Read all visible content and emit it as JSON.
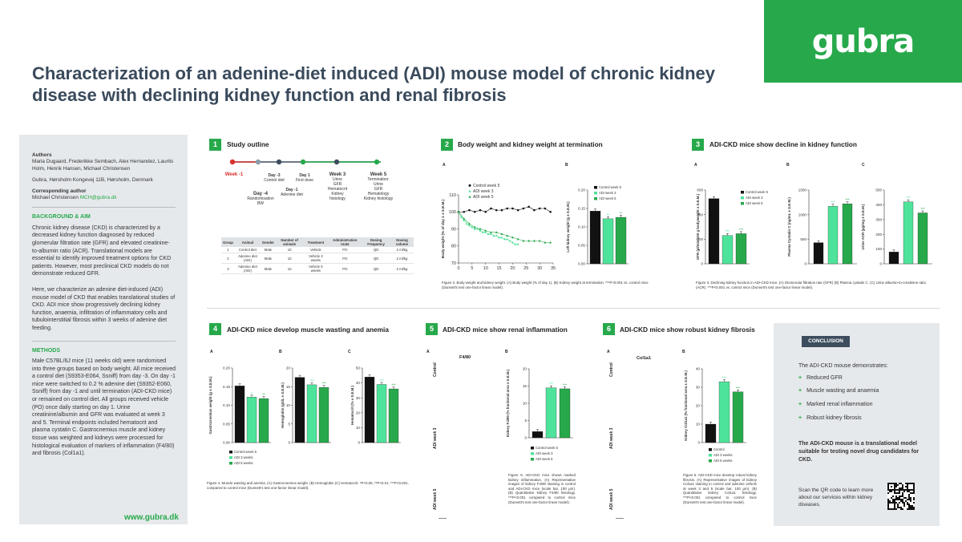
{
  "brand": {
    "logo_text": "gubra",
    "green": "#27a94b",
    "dark": "#3d4d5e",
    "website": "www.gubra.dk"
  },
  "title": "Characterization of an adenine-diet induced (ADI) mouse model of chronic kidney disease with declining kidney function and renal fibrosis",
  "sidebar": {
    "authors_label": "Authors",
    "authors": "Maria Dugaard, Frederikke Sembach, Alex Hernandez, Laurits Holm, Henrik Hansen, Michael Christensen",
    "affiliation": "Gubra, Hørsholm Kongevej 11B, Hørsholm, Denmark",
    "corr_label": "Corresponding author",
    "corr_name": "Michael Christensen",
    "corr_email": "MCH@gubra.dk",
    "bg_title": "BACKGROUND & AIM",
    "bg_p1": "Chronic kidney disease (CKD) is characterized by a decreased kidney function diagnosed by reduced glomerular filtration rate (GFR) and elevated creatinine-to-albumin ratio (ACR). Translational models are essential to identify improved treatment options for CKD patients. However, most preclinical CKD models do not demonstrate reduced GFR.",
    "bg_p2": "Here, we characterize an adenine diet-induced (ADI) mouse model of CKD that enables translational studies of CKD. ADI mice show progressively declining kidney function, anaemia, infiltration of inflammatory cells and tubulointerstitial fibrosis within 3 weeks of adenine diet feeding.",
    "methods_title": "METHODS",
    "methods_p": "Male C57BL/6J mice (11 weeks old) were randomised into three groups based on body weight. All mice received a control diet (S9353-E064, Ssniff) from day -3. On day -1 mice were switched to 0.2 % adenine diet (S9352-E060, Ssniff) from day -1 and until termination (ADI-CKD mice) or remained on control diet. All groups received vehicle (PO) once daily starting on day 1. Urine creatinine/albumin and GFR was evaluated at week 3 and 5. Terminal endpoints included hematocrit and plasma cystatin C. Gastrocnemius muscle and kidney tissue was weighted and kidneys were processed for histological evaluation of markers of inflammation (F4/80) and fibrosis (Col1a1)."
  },
  "sections": [
    {
      "num": "1",
      "title": "Study outline"
    },
    {
      "num": "2",
      "title": "Body weight and kidney weight at termination"
    },
    {
      "num": "3",
      "title": "ADI-CKD mice show decline in kidney function"
    },
    {
      "num": "4",
      "title": "ADI-CKD mice develop muscle wasting and anemia"
    },
    {
      "num": "5",
      "title": "ADI-CKD mice show renal inflammation"
    },
    {
      "num": "6",
      "title": "ADI-CKD mice show robust kidney fibrosis"
    }
  ],
  "timeline": {
    "above": [
      {
        "label": "Week -1",
        "bold": true,
        "red": true
      },
      {
        "label": "Day -3",
        "sub": "Control diet"
      },
      {
        "label": "Day -1",
        "sub": "Adenine diet"
      },
      {
        "label": "Day 1",
        "sub": "First dose"
      },
      {
        "label": "Week 3",
        "bold": true,
        "sub": "Urine\nGFR\nHematocrit\nKidney\nhistology"
      },
      {
        "label": "Week 5",
        "bold": true,
        "sub": "Termination:\nUrine\nGFR\nHematology\nKidney histology"
      }
    ],
    "day4_label": "Day -4",
    "day4_sub": "Randomisation\nBW",
    "colors": [
      "#d8322e",
      "#8a9cab",
      "#3d4d5e",
      "#27a94b",
      "#3d4d5e",
      "#27a94b"
    ]
  },
  "study_table": {
    "headers": [
      "Group",
      "Animal",
      "Gender",
      "Number of animals",
      "Treatment",
      "Administration route",
      "Dosing Frequency",
      "Dosing volume"
    ],
    "rows": [
      [
        "1",
        "Control diet",
        "Male",
        "10",
        "Vehicle",
        "PO",
        "QD",
        "2 ml/kg"
      ],
      [
        "2",
        "Adenine diet (ADI)",
        "Male",
        "10",
        "Vehicle 3 weeks",
        "PO",
        "QD",
        "2 ml/kg"
      ],
      [
        "3",
        "Adenine diet (ADI)",
        "Male",
        "10",
        "Vehicle 5 weeks",
        "PO",
        "QD",
        "2 ml/kg"
      ]
    ]
  },
  "captions": {
    "fig2": "Figure 2. Body weight and kidney weight. (A) Body weight (% of day 1). (B) Kidney weight at termination. ***P<0.001 vs. control mice (Dunnett's test one-factor linear model).",
    "fig3": "Figure 3. Declining kidney function in ADI-CKD mice. (A) Glomerular filtration rate (GFR) (B) Plasma cystatin C. (C) Urine albumin-to-creatinine ratio (ACR). ***P<0.001 vs. control mice (Dunnett's test one-factor linear model).",
    "fig4": "Figure 4. Muscle wasting and anemia. (A) Gastrocnemius weight. (B) Hemoglobin (C) Hematocrit. *P<0.05, **P<0.01, ***P<0.001, compared to control mice (Dunnett's test one-factor linear model).",
    "fig5": "Figure 5. ADI-CKD mice shows marked kidney inflammation. (A) Representative images of kidney F4/80 staining in control and ADI-CKD mice (scale bar, 100 µm). (B) Quantitative kidney F4/80 histology. ***P<0.001 compared to control mice (Dunnett's test one-factor linear model).",
    "fig6": "Figure 6. ADI-CKD mice develop robust kidney fibrosis. (A) Representative images of kidney Col1a1 staining in control and adenine vehicle at week 3 and 5 (scale bar, 100 µm). (B) Quantitative kidney Col1a1 histology. ***P<0.001 compared to control mice (Dunnett's test one-factor linear model)."
  },
  "panels": {
    "A": "A",
    "B": "B",
    "C": "C"
  },
  "histo": {
    "f480": "F4/80",
    "col1a1": "Col1a1",
    "rows": [
      "Control",
      "ADI week 3",
      "ADI week 5"
    ]
  },
  "conclusion": {
    "tag": "CONCLUSION",
    "intro": "The ADI-CKD mouse demonstrates:",
    "items": [
      "Reduced GFR",
      "Muscle wasting and anaemia",
      "Marked renal inflammation",
      "Robust kidney fibrosis"
    ],
    "statement": "The ADI-CKD mouse is a translational model suitable for testing novel drug candidates for CKD.",
    "qr_text": "Scan the QR code to learn more about our services within kidney diseases."
  },
  "chart_data": [
    {
      "id": "bw",
      "type": "line",
      "ylabel": "Body weight (% of day 1 ± S.E.M.)",
      "ylim": [
        70,
        110
      ],
      "yticks": [
        70,
        80,
        90,
        100,
        110
      ],
      "xlim": [
        0,
        35
      ],
      "xticks": [
        0,
        5,
        10,
        15,
        20,
        25,
        30,
        35
      ],
      "series": [
        {
          "name": "Control week 5",
          "color": "#111111",
          "x": [
            0,
            2,
            4,
            6,
            8,
            10,
            12,
            14,
            16,
            18,
            20,
            22,
            24,
            26,
            28,
            30,
            32,
            34
          ],
          "values": [
            100,
            100,
            101,
            100,
            101,
            100,
            102,
            101,
            101,
            102,
            102,
            101,
            102,
            103,
            101,
            102,
            102,
            100
          ]
        },
        {
          "name": "ADI week 3",
          "color": "#4ee39a",
          "x": [
            0,
            1,
            2,
            3,
            4,
            5,
            6,
            7,
            8,
            9,
            10,
            11,
            12,
            13,
            14,
            15,
            16,
            17,
            18,
            19,
            20,
            21,
            22
          ],
          "values": [
            100,
            97,
            95,
            93,
            92,
            91,
            90,
            90,
            89,
            88,
            88,
            87,
            87,
            86,
            86,
            85,
            85,
            84,
            84,
            83,
            82,
            81,
            81
          ]
        },
        {
          "name": "ADI week 5",
          "color": "#27a94b",
          "x": [
            0,
            2,
            4,
            6,
            8,
            10,
            12,
            14,
            16,
            18,
            20,
            22,
            24,
            26,
            28,
            30,
            32,
            34
          ],
          "values": [
            100,
            96,
            93,
            91,
            90,
            89,
            88,
            88,
            87,
            86,
            85,
            84,
            83,
            83,
            83,
            83,
            82,
            82
          ]
        }
      ]
    },
    {
      "id": "kw",
      "type": "bar",
      "ylabel": "Left kidney weight (g ± S.E.M.)",
      "ylim": [
        0,
        0.2
      ],
      "yticks": [
        "0.00",
        "0.05",
        "0.10",
        "0.15",
        "0.20"
      ],
      "series": [
        {
          "name": "Control week 5",
          "values": [
            0.143
          ]
        },
        {
          "name": "ADI week 3",
          "values": [
            0.122
          ]
        },
        {
          "name": "ADI week 5",
          "values": [
            0.126
          ]
        }
      ],
      "sig": [
        "",
        "**",
        "**"
      ]
    },
    {
      "id": "gfr",
      "type": "bar",
      "ylabel": "GFR (µl/min/100 g bodyweight ± S.E.M.)",
      "ylim": [
        0,
        600
      ],
      "yticks": [
        "0",
        "200",
        "400",
        "600"
      ],
      "series": [
        {
          "name": "Control week 5",
          "values": [
            530
          ]
        },
        {
          "name": "ADI week 3",
          "values": [
            230
          ]
        },
        {
          "name": "ADI week 5",
          "values": [
            245
          ]
        }
      ],
      "sig": [
        "",
        "***",
        "***"
      ]
    },
    {
      "id": "cys",
      "type": "bar",
      "ylabel": "Plasma Cystatin C (ng/mL ± S.E.M.)",
      "ylim": [
        0,
        1500
      ],
      "yticks": [
        "0",
        "500",
        "1000",
        "1500"
      ],
      "series": [
        {
          "name": "Control",
          "values": [
            430
          ]
        },
        {
          "name": "ADI week 3",
          "values": [
            1170
          ]
        },
        {
          "name": "ADI week 5",
          "values": [
            1220
          ]
        }
      ],
      "sig": [
        "",
        "***",
        "***"
      ]
    },
    {
      "id": "acr",
      "type": "bar",
      "ylabel": "Urine ACR (µg/mg ± S.E.M.)",
      "ylim": [
        0,
        500
      ],
      "yticks": [
        "0",
        "100",
        "200",
        "300",
        "400",
        "500"
      ],
      "series": [
        {
          "name": "Control",
          "values": [
            80
          ]
        },
        {
          "name": "ADI week 3",
          "values": [
            420
          ]
        },
        {
          "name": "ADI week 5",
          "values": [
            345
          ]
        }
      ],
      "sig": [
        "",
        "***",
        "***"
      ]
    },
    {
      "id": "gas",
      "type": "bar",
      "ylabel": "Gastrocnemius weight (g ± S.E.M.)",
      "ylim": [
        0,
        0.2
      ],
      "yticks": [
        "0.00",
        "0.05",
        "0.10",
        "0.15",
        "0.20"
      ],
      "series": [
        {
          "name": "Control week 5",
          "values": [
            0.152
          ]
        },
        {
          "name": "ADI 3 weeks",
          "values": [
            0.122
          ]
        },
        {
          "name": "ADI 5 weeks",
          "values": [
            0.118
          ]
        }
      ],
      "sig": [
        "",
        "*",
        "**"
      ]
    },
    {
      "id": "hgb",
      "type": "bar",
      "ylabel": "Hemoglobin (g/dL ± S.E.M.)",
      "ylim": [
        0,
        20
      ],
      "yticks": [
        "0",
        "5",
        "10",
        "15",
        "20"
      ],
      "series": [
        {
          "name": "Control",
          "values": [
            17.5
          ]
        },
        {
          "name": "ADI 3 weeks",
          "values": [
            15.5
          ]
        },
        {
          "name": "ADI 5 weeks",
          "values": [
            14.8
          ]
        }
      ],
      "sig": [
        "",
        "***",
        "***"
      ]
    },
    {
      "id": "hct",
      "type": "bar",
      "ylabel": "Hematocrit (% ± S.E.M.)",
      "ylim": [
        0,
        50
      ],
      "yticks": [
        "0",
        "10",
        "20",
        "30",
        "40",
        "50"
      ],
      "series": [
        {
          "name": "Control",
          "values": [
            44
          ]
        },
        {
          "name": "ADI 3 weeks",
          "values": [
            39
          ]
        },
        {
          "name": "ADI 5 weeks",
          "values": [
            36
          ]
        }
      ],
      "sig": [
        "",
        "***",
        "***"
      ]
    },
    {
      "id": "f480",
      "type": "bar",
      "ylabel": "Kidney F4/80 (% fractional area ± S.E.M.)",
      "ylim": [
        0,
        20
      ],
      "yticks": [
        "0",
        "5",
        "10",
        "15",
        "20"
      ],
      "series": [
        {
          "name": "Control week 5",
          "values": [
            1.8
          ]
        },
        {
          "name": "ADI week 3",
          "values": [
            14.5
          ]
        },
        {
          "name": "ADI week 5",
          "values": [
            14.2
          ]
        }
      ],
      "sig": [
        "",
        "***",
        "***"
      ]
    },
    {
      "id": "col",
      "type": "bar",
      "ylabel": "Kidney Col1a1 (% fractional area ± S.E.M.)",
      "ylim": [
        0,
        40
      ],
      "yticks": [
        "0",
        "10",
        "20",
        "30",
        "40"
      ],
      "series": [
        {
          "name": "Control",
          "values": [
            10
          ]
        },
        {
          "name": "ADI 3 weeks",
          "values": [
            33
          ]
        },
        {
          "name": "ADI 5 weeks",
          "values": [
            27.5
          ]
        }
      ],
      "sig": [
        "",
        "***",
        "***"
      ]
    }
  ]
}
